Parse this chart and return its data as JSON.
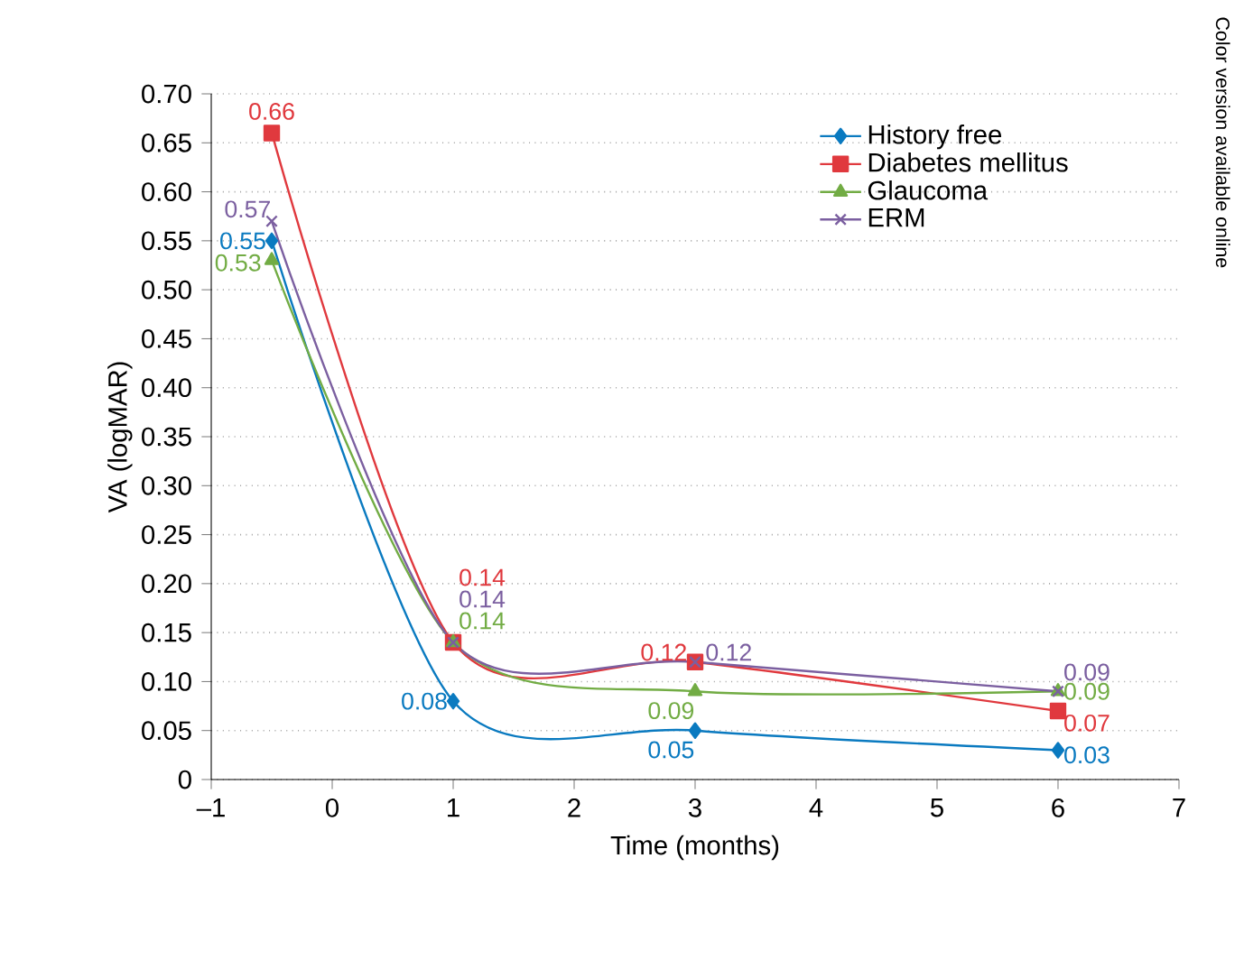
{
  "chart_data": {
    "type": "line",
    "xlabel": "Time (months)",
    "ylabel": "VA (logMAR)",
    "x": [
      -0.5,
      1,
      3,
      6
    ],
    "series": [
      {
        "name": "History free",
        "color": "#0a7ac0",
        "marker": "diamond",
        "values": [
          0.55,
          0.08,
          0.05,
          0.03
        ],
        "value_labels": [
          "0.55",
          "0.08",
          "0.05",
          "0.03"
        ]
      },
      {
        "name": "Diabetes mellitus",
        "color": "#e0393e",
        "marker": "square",
        "values": [
          0.66,
          0.14,
          0.12,
          0.07
        ],
        "value_labels": [
          "0.66",
          "0.14",
          "0.12",
          "0.07"
        ]
      },
      {
        "name": "Glaucoma",
        "color": "#72ac44",
        "marker": "triangle",
        "values": [
          0.53,
          0.14,
          0.09,
          0.09
        ],
        "value_labels": [
          "0.53",
          "0.14",
          "0.09",
          "0.09"
        ]
      },
      {
        "name": "ERM",
        "color": "#7b5fa0",
        "marker": "cross",
        "values": [
          0.57,
          0.14,
          0.12,
          0.09
        ],
        "value_labels": [
          "0.57",
          "0.14",
          "0.12",
          "0.09"
        ]
      }
    ],
    "xlim": [
      -1,
      7
    ],
    "xticks": [
      {
        "value": -1,
        "label": "–1"
      },
      0,
      1,
      2,
      3,
      4,
      5,
      6,
      7
    ],
    "ylim": [
      0,
      0.7
    ],
    "yticks": [
      0,
      {
        "value": 0.05,
        "label": "0.05"
      },
      {
        "value": 0.1,
        "label": "0.10"
      },
      {
        "value": 0.15,
        "label": "0.15"
      },
      {
        "value": 0.2,
        "label": "0.20"
      },
      {
        "value": 0.25,
        "label": "0.25"
      },
      {
        "value": 0.3,
        "label": "0.30"
      },
      {
        "value": 0.35,
        "label": "0.35"
      },
      {
        "value": 0.4,
        "label": "0.40"
      },
      {
        "value": 0.45,
        "label": "0.45"
      },
      {
        "value": 0.5,
        "label": "0.50"
      },
      {
        "value": 0.55,
        "label": "0.55"
      },
      {
        "value": 0.6,
        "label": "0.60"
      },
      {
        "value": 0.65,
        "label": "0.65"
      },
      {
        "value": 0.7,
        "label": "0.70"
      }
    ],
    "grid": "y",
    "legend": "top right",
    "line_style": "solid",
    "annotations": [
      "Color version available online"
    ]
  }
}
